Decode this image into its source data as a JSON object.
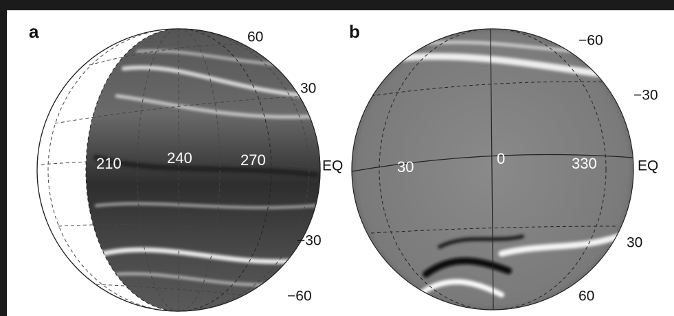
{
  "panels": [
    {
      "label": "a",
      "latitude_labels": [
        "60",
        "30",
        "EQ",
        "−30",
        "−60"
      ],
      "longitude_labels": [
        "210",
        "240",
        "270"
      ]
    },
    {
      "label": "b",
      "latitude_labels": [
        "−60",
        "−30",
        "EQ",
        "30",
        "60"
      ],
      "longitude_labels": [
        "30",
        "0",
        "330"
      ]
    }
  ]
}
